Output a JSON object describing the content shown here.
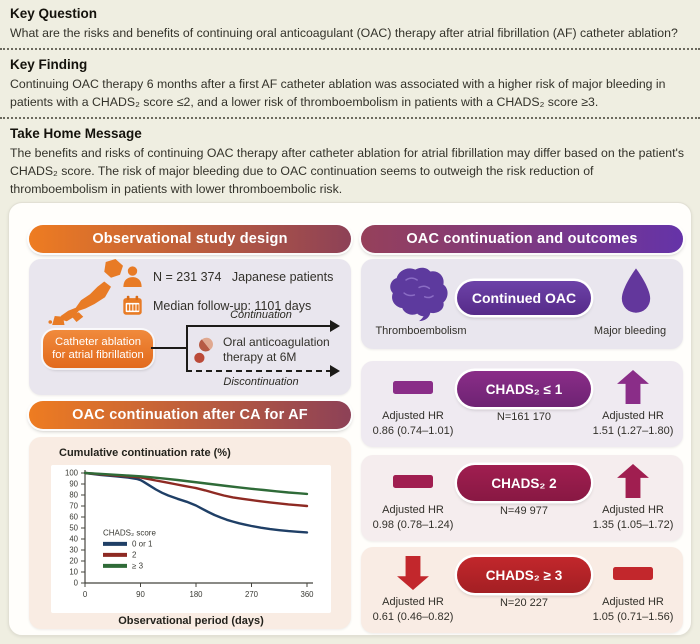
{
  "sections": {
    "key_question": {
      "title": "Key Question",
      "body": "What are the risks and benefits of continuing oral anticoagulant (OAC) therapy after atrial fibrillation (AF) catheter ablation?"
    },
    "key_finding": {
      "title": "Key Finding",
      "body": "Continuing OAC therapy 6 months after a first AF catheter ablation was associated with a higher risk of major bleeding in patients with a CHADS₂ score ≤2, and a lower risk of thromboembolism in patients with a CHADS₂ score ≥3."
    },
    "take_home": {
      "title": "Take Home Message",
      "body": "The benefits and risks of continuing OAC therapy after catheter ablation for atrial fibrillation may differ based on the patient's CHADS₂ score. The risk of major bleeding due to OAC continuation seems to outweigh the risk reduction of thromboembolism in patients with lower thromboembolic risk."
    }
  },
  "study_design": {
    "header": "Observational study design",
    "n_value": "N = 231 374",
    "n_suffix": "Japanese patients",
    "followup": "Median follow-up: 1101 days",
    "ablation_box": "Catheter ablation for atrial fibrillation",
    "continuation_label": "Continuation",
    "discontinuation_label": "Discontinuation",
    "oac_line1": "Oral anticoagulation",
    "oac_line2": "therapy at 6M"
  },
  "chart_section": {
    "header": "OAC continuation after CA for AF"
  },
  "chart_data": {
    "type": "line",
    "ylabel": "Cumulative continuation rate (%)",
    "xlabel": "Observational period (days)",
    "xlim": [
      0,
      360
    ],
    "ylim": [
      0,
      100
    ],
    "xticks": [
      0,
      90,
      180,
      270,
      360
    ],
    "yticks": [
      0,
      10,
      20,
      30,
      40,
      50,
      60,
      70,
      80,
      90,
      100
    ],
    "legend_title": "CHADS₂ score",
    "legend_position": "inside lower-left",
    "grid": false,
    "series": [
      {
        "name": "0 or 1",
        "color": "#1f3f66",
        "points": [
          [
            0,
            100
          ],
          [
            25,
            98.3
          ],
          [
            50,
            97
          ],
          [
            70,
            95.8
          ],
          [
            85,
            94.5
          ],
          [
            90,
            93.5
          ],
          [
            95,
            92
          ],
          [
            105,
            88.5
          ],
          [
            115,
            85
          ],
          [
            125,
            82
          ],
          [
            135,
            79.5
          ],
          [
            150,
            76.5
          ],
          [
            165,
            73.8
          ],
          [
            180,
            70.5
          ],
          [
            190,
            67.5
          ],
          [
            200,
            64.5
          ],
          [
            210,
            61.8
          ],
          [
            220,
            59.5
          ],
          [
            230,
            57.5
          ],
          [
            240,
            55.8
          ],
          [
            250,
            54.3
          ],
          [
            260,
            53
          ],
          [
            270,
            51.8
          ],
          [
            285,
            50.3
          ],
          [
            300,
            49
          ],
          [
            315,
            48
          ],
          [
            330,
            47.2
          ],
          [
            345,
            46.5
          ],
          [
            360,
            46
          ]
        ]
      },
      {
        "name": "2",
        "color": "#8e2a23",
        "points": [
          [
            0,
            100
          ],
          [
            30,
            98.6
          ],
          [
            60,
            97.4
          ],
          [
            90,
            96
          ],
          [
            100,
            94.8
          ],
          [
            115,
            93.2
          ],
          [
            130,
            91.6
          ],
          [
            145,
            90
          ],
          [
            160,
            88.4
          ],
          [
            175,
            86.8
          ],
          [
            180,
            86.3
          ],
          [
            195,
            84.2
          ],
          [
            210,
            81.8
          ],
          [
            225,
            79.5
          ],
          [
            240,
            77.8
          ],
          [
            255,
            76.5
          ],
          [
            270,
            75.4
          ],
          [
            285,
            74.3
          ],
          [
            300,
            73.3
          ],
          [
            315,
            72.4
          ],
          [
            330,
            71.5
          ],
          [
            345,
            70.7
          ],
          [
            360,
            70
          ]
        ]
      },
      {
        "name": "≥ 3",
        "color": "#2f6b38",
        "points": [
          [
            0,
            100
          ],
          [
            30,
            99
          ],
          [
            60,
            98
          ],
          [
            90,
            97
          ],
          [
            110,
            96
          ],
          [
            130,
            94.8
          ],
          [
            150,
            93.6
          ],
          [
            170,
            92.3
          ],
          [
            190,
            90.9
          ],
          [
            210,
            89.5
          ],
          [
            230,
            88.2
          ],
          [
            250,
            86.9
          ],
          [
            270,
            85.6
          ],
          [
            290,
            84.5
          ],
          [
            310,
            83.4
          ],
          [
            330,
            82.3
          ],
          [
            345,
            81.6
          ],
          [
            360,
            81
          ]
        ]
      }
    ]
  },
  "outcomes": {
    "header": "OAC continuation and outcomes",
    "thromboembolism_label": "Thromboembolism",
    "continued_oac_label": "Continued OAC",
    "major_bleeding_label": "Major bleeding",
    "rows": [
      {
        "group": "CHADS₂ ≤ 1",
        "n": "N=161 170",
        "te_dir": "flat",
        "te_hr_label": "Adjusted HR",
        "te_hr": "0.86 (0.74–1.01)",
        "mb_dir": "up",
        "mb_hr_label": "Adjusted HR",
        "mb_hr": "1.51 (1.27–1.80)",
        "accent_color": "#8a2d88",
        "accent_dark": "#6e2373",
        "bg_color": "#efeaf1"
      },
      {
        "group": "CHADS₂  2",
        "n": "N=49 977",
        "te_dir": "flat",
        "te_hr_label": "Adjusted HR",
        "te_hr": "0.98 (0.78–1.24)",
        "mb_dir": "up",
        "mb_hr_label": "Adjusted HR",
        "mb_hr": "1.35 (1.05–1.72)",
        "accent_color": "#a01e50",
        "accent_dark": "#881843",
        "bg_color": "#f5edee"
      },
      {
        "group": "CHADS₂  ≥ 3",
        "n": "N=20 227",
        "te_dir": "down",
        "te_hr_label": "Adjusted HR",
        "te_hr": "0.61 (0.46–0.82)",
        "mb_dir": "flat",
        "mb_hr_label": "Adjusted HR",
        "mb_hr": "1.05 (0.71–1.56)",
        "accent_color": "#c2272c",
        "accent_dark": "#a31f23",
        "bg_color": "#f9ece4"
      }
    ]
  },
  "colors": {
    "page_bg": "#efeee1",
    "panel_bg": "#fffefb",
    "header_gradient_left": [
      "#ee7c21",
      "#8d4157"
    ],
    "header_gradient_right": [
      "#96405a",
      "#6533a8"
    ],
    "design_card_bg": "#e9e6ee",
    "chart_card_bg": "#f9ece3",
    "orange_accent": "#e87b25",
    "purple_accent": "#5d3a9e"
  }
}
